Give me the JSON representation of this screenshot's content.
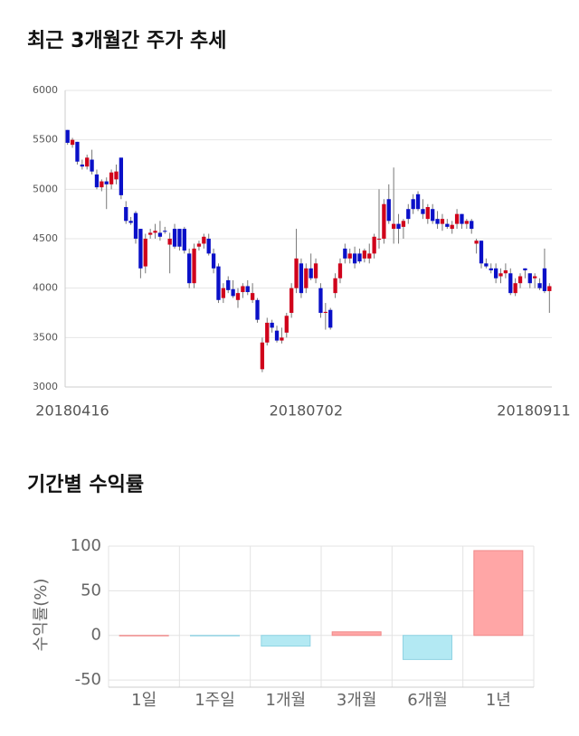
{
  "chart_data": [
    {
      "type": "candlestick",
      "title": "최근 3개월간 주가 추세",
      "categories": [
        "20180416",
        null,
        null,
        null,
        null,
        null,
        null,
        null,
        null,
        null,
        null,
        null,
        null,
        null,
        null,
        null,
        null,
        null,
        null,
        null,
        null,
        null,
        null,
        null,
        null,
        null,
        null,
        null,
        null,
        null,
        null,
        null,
        null,
        null,
        null,
        null,
        null,
        null,
        null,
        null,
        null,
        null,
        null,
        null,
        null,
        null,
        null,
        null,
        null,
        "20180702",
        null,
        null,
        null,
        null,
        null,
        null,
        null,
        null,
        null,
        null,
        null,
        null,
        null,
        null,
        null,
        null,
        null,
        null,
        null,
        null,
        null,
        null,
        null,
        null,
        null,
        null,
        null,
        null,
        null,
        null,
        null,
        null,
        null,
        null,
        null,
        null,
        null,
        null,
        null,
        null,
        null,
        null,
        null,
        null,
        null,
        null,
        null,
        null,
        null,
        "20180911"
      ],
      "candles": [
        [
          5600,
          5600,
          5450,
          5470
        ],
        [
          5450,
          5520,
          5420,
          5500
        ],
        [
          5480,
          5480,
          5250,
          5280
        ],
        [
          5250,
          5300,
          5200,
          5230
        ],
        [
          5230,
          5350,
          5200,
          5320
        ],
        [
          5300,
          5400,
          5150,
          5180
        ],
        [
          5150,
          5200,
          5000,
          5020
        ],
        [
          5020,
          5100,
          4980,
          5080
        ],
        [
          5080,
          5120,
          4800,
          5050
        ],
        [
          5050,
          5200,
          5000,
          5170
        ],
        [
          5100,
          5250,
          5050,
          5180
        ],
        [
          5320,
          5320,
          4900,
          4940
        ],
        [
          4820,
          4880,
          4650,
          4680
        ],
        [
          4680,
          4720,
          4640,
          4660
        ],
        [
          4760,
          4780,
          4450,
          4500
        ],
        [
          4600,
          4600,
          4100,
          4200
        ],
        [
          4220,
          4550,
          4150,
          4500
        ],
        [
          4540,
          4600,
          4500,
          4560
        ],
        [
          4560,
          4650,
          4500,
          4580
        ],
        [
          4560,
          4680,
          4480,
          4520
        ],
        [
          4580,
          4620,
          4550,
          4570
        ],
        [
          4440,
          4560,
          4150,
          4500
        ],
        [
          4600,
          4650,
          4400,
          4420
        ],
        [
          4600,
          4600,
          4380,
          4420
        ],
        [
          4600,
          4620,
          4350,
          4380
        ],
        [
          4350,
          4400,
          4000,
          4050
        ],
        [
          4050,
          4450,
          4000,
          4400
        ],
        [
          4420,
          4480,
          4380,
          4450
        ],
        [
          4450,
          4550,
          4400,
          4520
        ],
        [
          4500,
          4550,
          4330,
          4350
        ],
        [
          4350,
          4400,
          4150,
          4200
        ],
        [
          4220,
          4250,
          3850,
          3880
        ],
        [
          3900,
          4050,
          3850,
          4000
        ],
        [
          4080,
          4120,
          3950,
          3980
        ],
        [
          3990,
          4080,
          3900,
          3920
        ],
        [
          3880,
          4000,
          3800,
          3950
        ],
        [
          3960,
          4050,
          3900,
          4020
        ],
        [
          4020,
          4080,
          3930,
          3960
        ],
        [
          3880,
          4050,
          3850,
          3950
        ],
        [
          3880,
          3900,
          3650,
          3680
        ],
        [
          3180,
          3500,
          3150,
          3450
        ],
        [
          3450,
          3700,
          3420,
          3650
        ],
        [
          3650,
          3680,
          3550,
          3600
        ],
        [
          3570,
          3620,
          3450,
          3470
        ],
        [
          3470,
          3600,
          3440,
          3500
        ],
        [
          3550,
          3750,
          3500,
          3720
        ],
        [
          3750,
          4050,
          3700,
          4000
        ],
        [
          4000,
          4600,
          3950,
          4300
        ],
        [
          4250,
          4300,
          3900,
          3950
        ],
        [
          4000,
          4250,
          3950,
          4200
        ],
        [
          4200,
          4350,
          4080,
          4100
        ],
        [
          4100,
          4300,
          4050,
          4250
        ],
        [
          4000,
          4050,
          3700,
          3750
        ],
        [
          3750,
          3850,
          3580,
          3760
        ],
        [
          3780,
          3800,
          3580,
          3600
        ],
        [
          3950,
          4150,
          3900,
          4100
        ],
        [
          4100,
          4300,
          4050,
          4250
        ],
        [
          4400,
          4450,
          4250,
          4300
        ],
        [
          4300,
          4400,
          4250,
          4350
        ],
        [
          4350,
          4420,
          4200,
          4250
        ],
        [
          4350,
          4400,
          4250,
          4270
        ],
        [
          4300,
          4400,
          4260,
          4380
        ],
        [
          4300,
          4450,
          4250,
          4350
        ],
        [
          4350,
          4550,
          4300,
          4520
        ],
        [
          4500,
          5000,
          4400,
          4500
        ],
        [
          4500,
          4900,
          4450,
          4850
        ],
        [
          4900,
          5050,
          4650,
          4680
        ],
        [
          4600,
          5220,
          4450,
          4650
        ],
        [
          4650,
          4750,
          4450,
          4600
        ],
        [
          4620,
          4700,
          4500,
          4680
        ],
        [
          4800,
          4850,
          4650,
          4700
        ],
        [
          4900,
          4950,
          4750,
          4800
        ],
        [
          4950,
          4980,
          4780,
          4800
        ],
        [
          4800,
          4900,
          4700,
          4750
        ],
        [
          4700,
          4850,
          4650,
          4820
        ],
        [
          4800,
          4850,
          4650,
          4680
        ],
        [
          4700,
          4780,
          4600,
          4650
        ],
        [
          4650,
          4750,
          4580,
          4700
        ],
        [
          4650,
          4700,
          4600,
          4620
        ],
        [
          4600,
          4680,
          4550,
          4640
        ],
        [
          4650,
          4800,
          4600,
          4750
        ],
        [
          4750,
          4750,
          4600,
          4650
        ],
        [
          4650,
          4700,
          4600,
          4680
        ],
        [
          4680,
          4700,
          4550,
          4600
        ],
        [
          4450,
          4500,
          4350,
          4480
        ],
        [
          4480,
          4480,
          4200,
          4250
        ],
        [
          4250,
          4300,
          4200,
          4220
        ],
        [
          4200,
          4250,
          4150,
          4180
        ],
        [
          4200,
          4250,
          4050,
          4100
        ],
        [
          4120,
          4200,
          4050,
          4150
        ],
        [
          4150,
          4250,
          4100,
          4180
        ],
        [
          4150,
          4200,
          3930,
          3950
        ],
        [
          3950,
          4100,
          3920,
          4050
        ],
        [
          4050,
          4150,
          4000,
          4120
        ],
        [
          4200,
          4200,
          4100,
          4180
        ],
        [
          4150,
          4150,
          4000,
          4050
        ],
        [
          4100,
          4150,
          4000,
          4120
        ],
        [
          4050,
          4100,
          3980,
          4000
        ],
        [
          4200,
          4400,
          3950,
          3970
        ],
        [
          3970,
          4050,
          3750,
          4020
        ]
      ],
      "up_color": "#d0021b",
      "down_color": "#0a10c8",
      "ylim": [
        3000,
        6000
      ],
      "yticks": [
        3000,
        3500,
        4000,
        4500,
        5000,
        5500,
        6000
      ],
      "grid": true
    },
    {
      "type": "bar",
      "title": "기간별 수익률",
      "y_label": "수익률(%)",
      "categories": [
        "1일",
        "1주일",
        "1개월",
        "3개월",
        "6개월",
        "1년"
      ],
      "values": [
        0,
        -0.5,
        -12,
        4,
        -27,
        95
      ],
      "positive_color": "#ffa6a6",
      "negative_color": "#b3e9f3",
      "ylim": [
        -58,
        100
      ],
      "yticks": [
        -50,
        0,
        50,
        100
      ],
      "grid": true
    }
  ]
}
